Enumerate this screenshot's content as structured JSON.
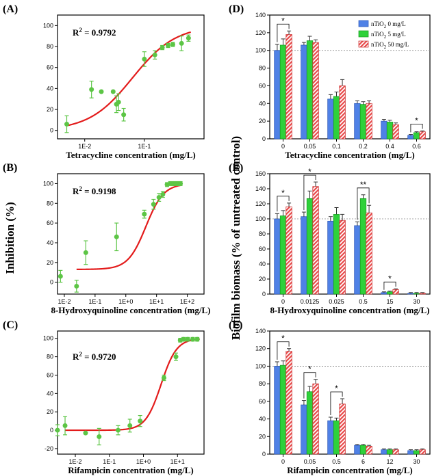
{
  "y_label_left": "Inhibition (%)",
  "y_label_right": "Biofilm biomass (% of untreated control)",
  "colors": {
    "blue": "#4f81e6",
    "green": "#2ed13a",
    "red": "#e84848",
    "fit": "#e31b1b",
    "point": "#5cc545"
  },
  "legend": [
    {
      "pre": "nTiO",
      "sub": "2",
      "post": " 0 mg/L",
      "fill": "blue"
    },
    {
      "pre": "nTiO",
      "sub": "2",
      "post": " 5 mg/L",
      "fill": "green"
    },
    {
      "pre": "nTiO",
      "sub": "2",
      "post": " 50 mg/L",
      "fill": "hatch"
    }
  ],
  "chart_data": [
    {
      "panel": "(A)",
      "type": "scatter",
      "xlabel": "Tetracycline concentration (mg/L)",
      "r2_prefix": "R",
      "r2_sup": "2",
      "r2_value": " = 0.9792",
      "xscale": "log",
      "xlim": [
        0.0035,
        1.0
      ],
      "ylim": [
        -8,
        110
      ],
      "xticks": [
        0.01,
        0.1
      ],
      "xticklabels": [
        "1E-2",
        "1E-1"
      ],
      "yticks": [
        0,
        20,
        40,
        60,
        80,
        100
      ],
      "points": [
        {
          "x": 0.005,
          "y": 6,
          "e": 8
        },
        {
          "x": 0.013,
          "y": 39,
          "e": 8
        },
        {
          "x": 0.019,
          "y": 37,
          "e": 0
        },
        {
          "x": 0.03,
          "y": 37,
          "e": 0
        },
        {
          "x": 0.034,
          "y": 25,
          "e": 8
        },
        {
          "x": 0.037,
          "y": 27,
          "e": 8
        },
        {
          "x": 0.045,
          "y": 15,
          "e": 6
        },
        {
          "x": 0.1,
          "y": 68,
          "e": 7
        },
        {
          "x": 0.15,
          "y": 72,
          "e": 4
        },
        {
          "x": 0.2,
          "y": 79,
          "e": 2
        },
        {
          "x": 0.25,
          "y": 81,
          "e": 2
        },
        {
          "x": 0.3,
          "y": 82,
          "e": 2
        },
        {
          "x": 0.42,
          "y": 83,
          "e": 7
        },
        {
          "x": 0.55,
          "y": 88,
          "e": 3
        }
      ],
      "fit": {
        "lo": 0.0,
        "hi": 100,
        "ec50": 0.063,
        "slope": 1.2,
        "xmin": 0.005,
        "xmax": 0.6
      }
    },
    {
      "panel": "(B)",
      "type": "scatter",
      "xlabel": "8-Hydroxyquinoline concentration (mg/L)",
      "r2_prefix": "R",
      "r2_sup": "2",
      "r2_value": " = 0.9198",
      "xscale": "log",
      "xlim": [
        0.006,
        350
      ],
      "ylim": [
        -12,
        110
      ],
      "xticks": [
        0.01,
        0.1,
        1,
        10,
        100
      ],
      "xticklabels": [
        "1E-2",
        "1E-1",
        "1E+0",
        "1E+1",
        "1E+2"
      ],
      "yticks": [
        0,
        20,
        40,
        60,
        80,
        100
      ],
      "points": [
        {
          "x": 0.0075,
          "y": 6,
          "e": 6
        },
        {
          "x": 0.025,
          "y": -4,
          "e": 6
        },
        {
          "x": 0.05,
          "y": 30,
          "e": 12
        },
        {
          "x": 0.5,
          "y": 46,
          "e": 14
        },
        {
          "x": 4,
          "y": 69,
          "e": 4
        },
        {
          "x": 8,
          "y": 79,
          "e": 5
        },
        {
          "x": 12,
          "y": 86,
          "e": 4
        },
        {
          "x": 16,
          "y": 89,
          "e": 3
        },
        {
          "x": 22,
          "y": 99,
          "e": 2
        },
        {
          "x": 28,
          "y": 100,
          "e": 2
        },
        {
          "x": 35,
          "y": 100,
          "e": 2
        },
        {
          "x": 42,
          "y": 100,
          "e": 2
        },
        {
          "x": 50,
          "y": 100,
          "e": 2
        },
        {
          "x": 60,
          "y": 100,
          "e": 2
        }
      ],
      "fit": {
        "lo": 13,
        "hi": 100,
        "ec50": 4.5,
        "slope": 1.5,
        "xmin": 0.025,
        "xmax": 65
      }
    },
    {
      "panel": "(C)",
      "type": "scatter",
      "xlabel": "Rifampicin concentration (mg/L)",
      "r2_prefix": "R",
      "r2_sup": "2",
      "r2_value": " = 0.9720",
      "xscale": "log",
      "xlim": [
        0.003,
        60
      ],
      "ylim": [
        -26,
        108
      ],
      "xticks": [
        0.01,
        0.1,
        1,
        10
      ],
      "xticklabels": [
        "1E-2",
        "1E-1",
        "1E+0",
        "1E+1"
      ],
      "yticks": [
        -20,
        0,
        20,
        40,
        60,
        80,
        100
      ],
      "points": [
        {
          "x": 0.003,
          "y": 0,
          "e": 6
        },
        {
          "x": 0.005,
          "y": 5,
          "e": 10
        },
        {
          "x": 0.02,
          "y": -3,
          "e": 0
        },
        {
          "x": 0.05,
          "y": -7,
          "e": 9
        },
        {
          "x": 0.18,
          "y": 0,
          "e": 5
        },
        {
          "x": 0.4,
          "y": 5,
          "e": 7
        },
        {
          "x": 0.8,
          "y": 10,
          "e": 6
        },
        {
          "x": 4,
          "y": 57,
          "e": 3
        },
        {
          "x": 9,
          "y": 80,
          "e": 4
        },
        {
          "x": 12,
          "y": 98,
          "e": 2
        },
        {
          "x": 15,
          "y": 99,
          "e": 2
        },
        {
          "x": 20,
          "y": 99,
          "e": 2
        },
        {
          "x": 28,
          "y": 99,
          "e": 2
        },
        {
          "x": 38,
          "y": 99,
          "e": 2
        }
      ],
      "fit": {
        "lo": 0,
        "hi": 100,
        "ec50": 3.3,
        "slope": 1.9,
        "xmin": 0.005,
        "xmax": 45
      }
    },
    {
      "panel": "(D)",
      "type": "bar",
      "xlabel": "Tetracycline concentration (mg/L)",
      "categories": [
        "0",
        "0.05",
        "0.1",
        "0.2",
        "0.4",
        "0.6"
      ],
      "ylim": [
        0,
        140
      ],
      "yticks": [
        0,
        20,
        40,
        60,
        80,
        100,
        120,
        140
      ],
      "refline": 100,
      "series": [
        {
          "name": "nTiO2 0 mg/L",
          "values": [
            100,
            106,
            45,
            40,
            20,
            4
          ],
          "errors": [
            7,
            3,
            5,
            3,
            2,
            1
          ]
        },
        {
          "name": "nTiO2 5 mg/L",
          "values": [
            106,
            111,
            48,
            39,
            19,
            7
          ],
          "errors": [
            7,
            5,
            5,
            3,
            2,
            1
          ]
        },
        {
          "name": "nTiO2 50 mg/L",
          "values": [
            118,
            109,
            60,
            40,
            16,
            8
          ],
          "errors": [
            4,
            3,
            7,
            3,
            2,
            1
          ]
        }
      ],
      "annotations": [
        {
          "cat": 0,
          "label": "*"
        },
        {
          "cat": 5,
          "label": "*"
        }
      ]
    },
    {
      "panel": "(E)",
      "type": "bar",
      "xlabel": "8-Hydroxyquinoline concentration (mg/L)",
      "categories": [
        "0",
        "0.0125",
        "0.025",
        "0.5",
        "15",
        "30"
      ],
      "ylim": [
        0,
        160
      ],
      "yticks": [
        0,
        20,
        40,
        60,
        80,
        100,
        120,
        140,
        160
      ],
      "refline": 100,
      "series": [
        {
          "name": "nTiO2 0 mg/L",
          "values": [
            100,
            103,
            97,
            91,
            2,
            1
          ],
          "errors": [
            7,
            6,
            6,
            5,
            1,
            1
          ]
        },
        {
          "name": "nTiO2 5 mg/L",
          "values": [
            104,
            127,
            106,
            127,
            3,
            1
          ],
          "errors": [
            7,
            10,
            9,
            5,
            1,
            1
          ]
        },
        {
          "name": "nTiO2 50 mg/L",
          "values": [
            116,
            143,
            98,
            108,
            6,
            1
          ],
          "errors": [
            5,
            6,
            8,
            10,
            1,
            1
          ]
        }
      ],
      "annotations": [
        {
          "cat": 0,
          "label": "*"
        },
        {
          "cat": 1,
          "label": "*"
        },
        {
          "cat": 3,
          "label": "**"
        },
        {
          "cat": 4,
          "label": "*"
        }
      ]
    },
    {
      "panel": "(F)",
      "type": "bar",
      "xlabel": "Rifampicin concentration (mg/L)",
      "categories": [
        "0",
        "0.05",
        "0.5",
        "6",
        "12",
        "30"
      ],
      "ylim": [
        0,
        140
      ],
      "yticks": [
        0,
        20,
        40,
        60,
        80,
        100,
        120,
        140
      ],
      "refline": 100,
      "series": [
        {
          "name": "nTiO2 0 mg/L",
          "values": [
            100,
            56,
            38,
            10,
            5,
            4
          ],
          "errors": [
            5,
            5,
            4,
            1,
            1,
            1
          ]
        },
        {
          "name": "nTiO2 5 mg/L",
          "values": [
            101,
            71,
            38,
            10,
            5,
            4
          ],
          "errors": [
            5,
            6,
            3,
            1,
            1,
            1
          ]
        },
        {
          "name": "nTiO2 50 mg/L",
          "values": [
            117,
            80,
            57,
            9,
            5,
            5
          ],
          "errors": [
            3,
            5,
            6,
            1,
            1,
            1
          ]
        }
      ],
      "annotations": [
        {
          "cat": 0,
          "label": "*"
        },
        {
          "cat": 1,
          "label": "*"
        },
        {
          "cat": 2,
          "label": "*"
        }
      ]
    }
  ]
}
